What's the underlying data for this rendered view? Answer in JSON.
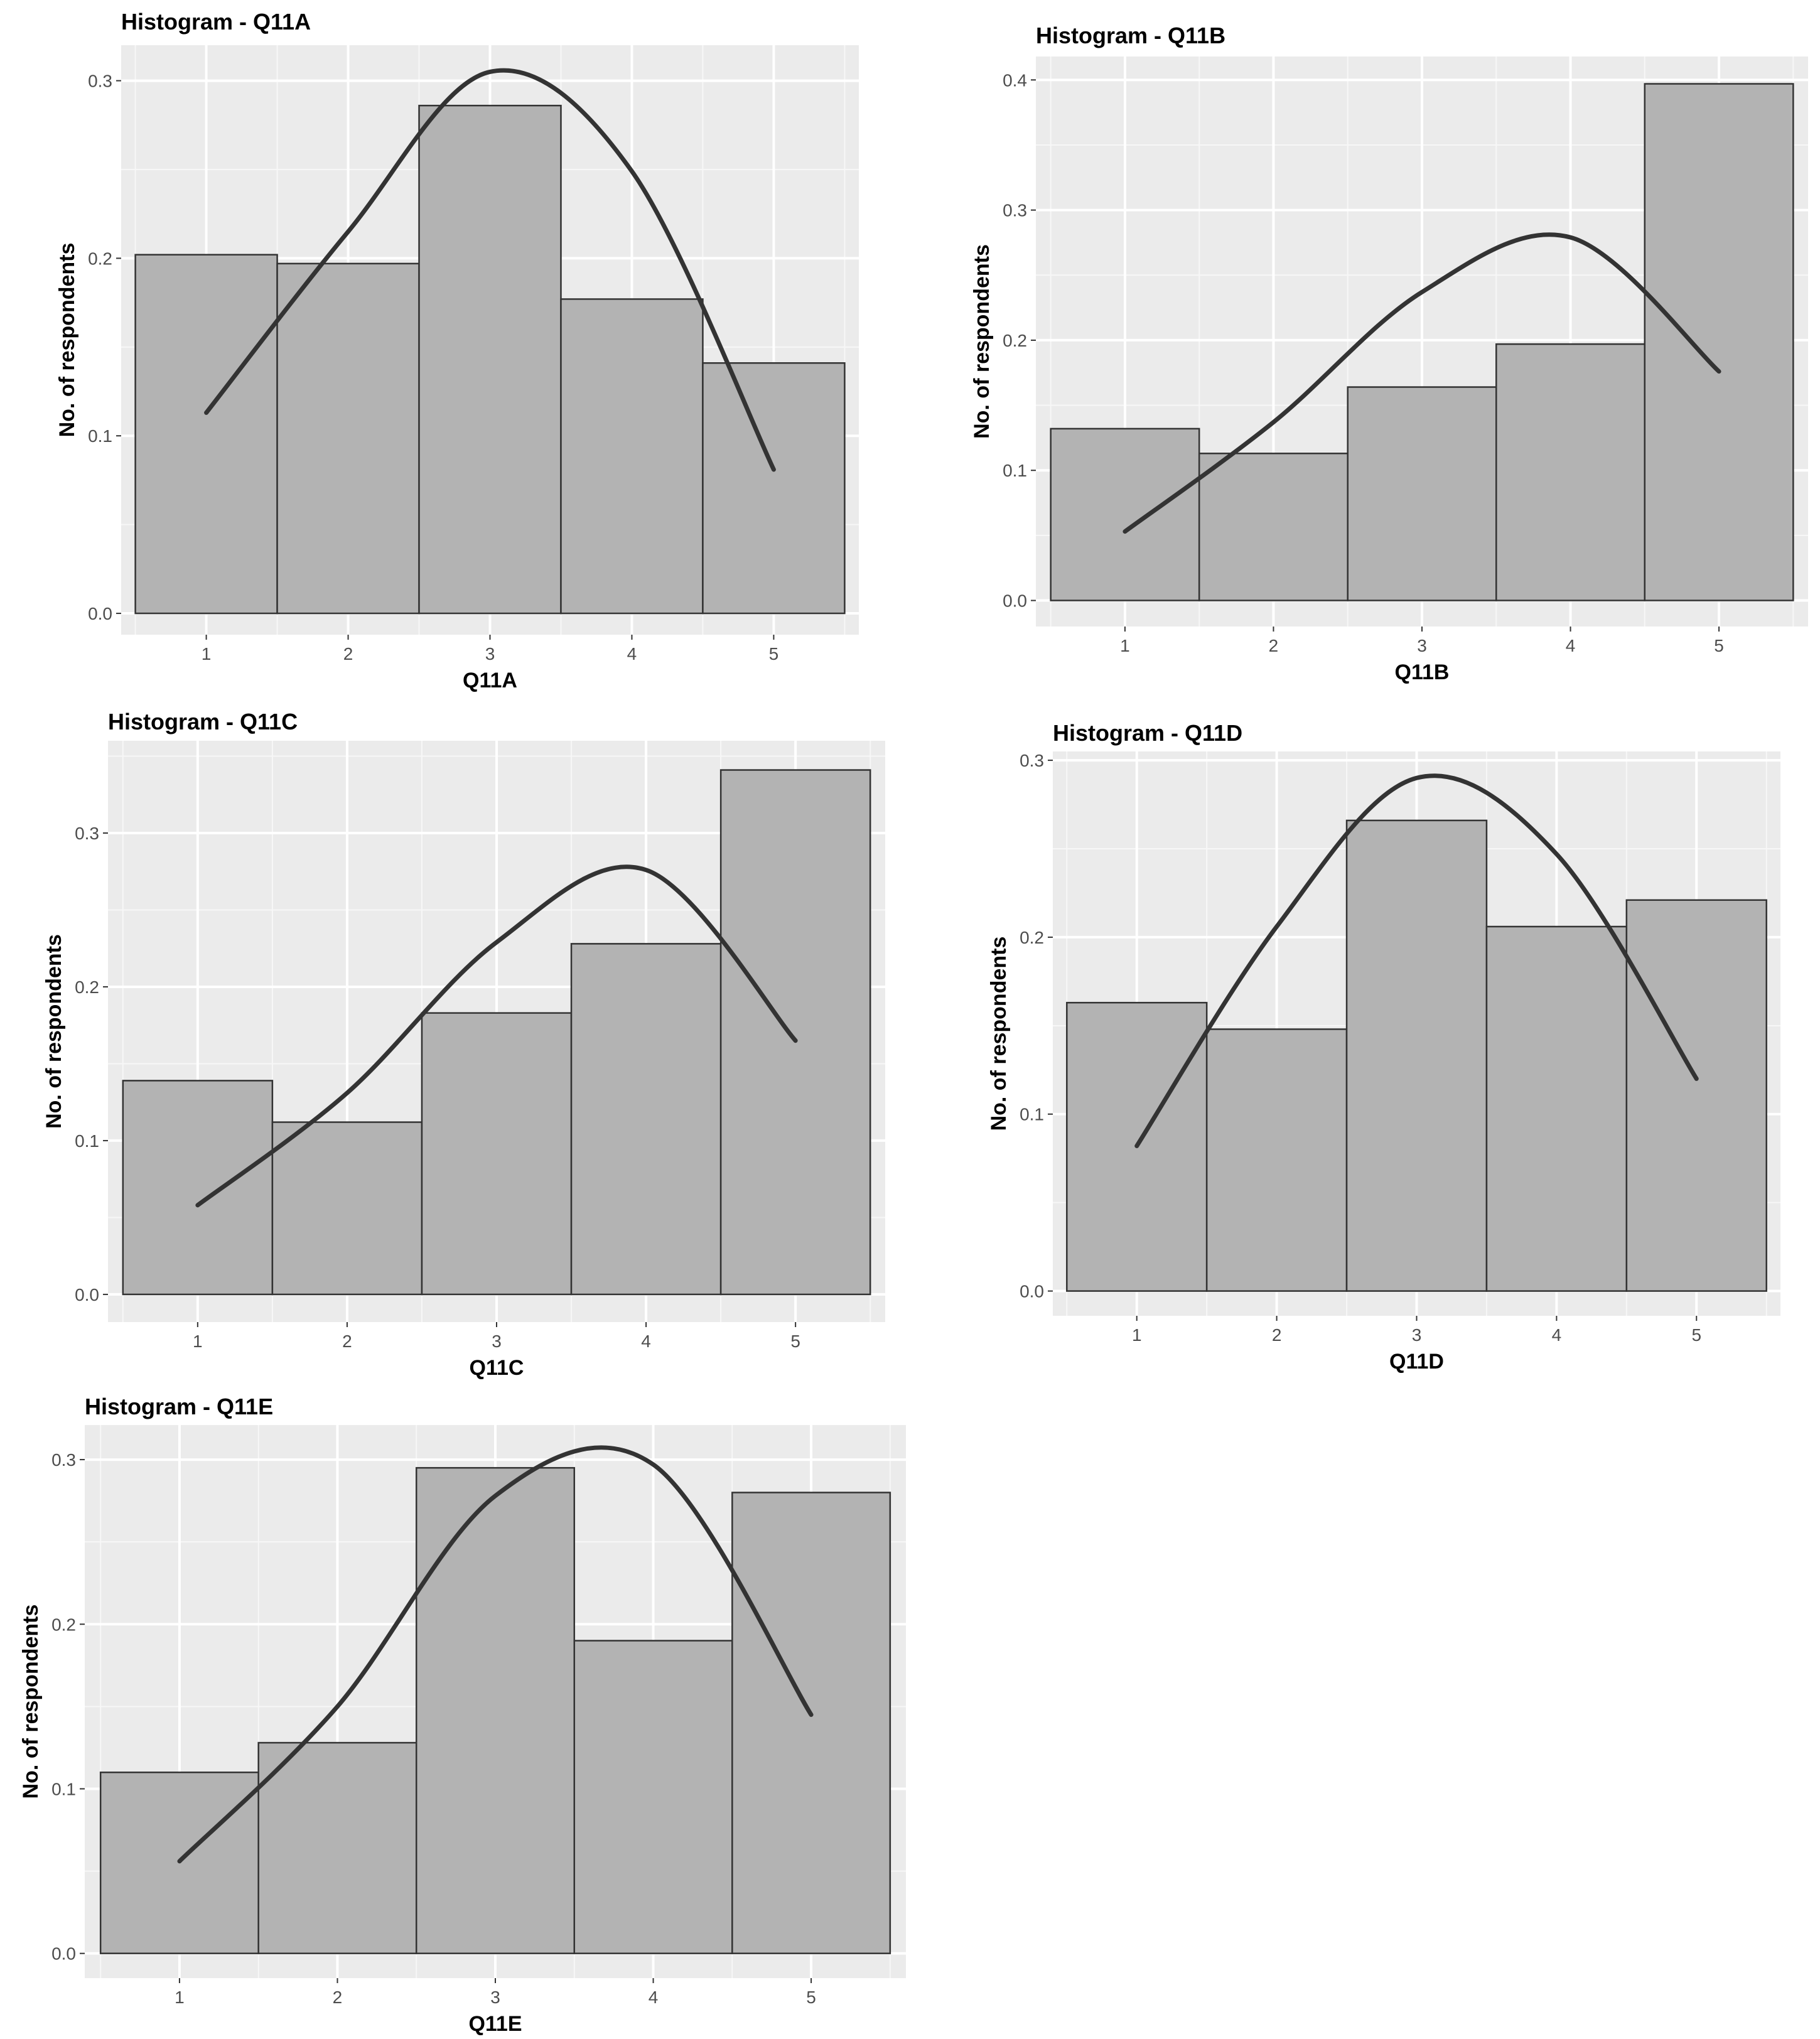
{
  "chart_data": [
    {
      "type": "bar",
      "title": "Histogram - Q11A",
      "xlabel": "Q11A",
      "ylabel": "No. of respondents",
      "categories": [
        "1",
        "2",
        "3",
        "4",
        "5"
      ],
      "values": [
        0.202,
        0.197,
        0.286,
        0.177,
        0.141
      ],
      "density_curve": [
        0.113,
        0.215,
        0.305,
        0.249,
        0.081
      ],
      "y_ticks": [
        "0.0",
        "0.1",
        "0.2",
        "0.3"
      ],
      "ylim": [
        -0.012,
        0.32
      ],
      "grid": true
    },
    {
      "type": "bar",
      "title": "Histogram - Q11B",
      "xlabel": "Q11B",
      "ylabel": "No. of respondents",
      "categories": [
        "1",
        "2",
        "3",
        "4",
        "5"
      ],
      "values": [
        0.132,
        0.113,
        0.164,
        0.197,
        0.397
      ],
      "density_curve": [
        0.053,
        0.137,
        0.237,
        0.279,
        0.176
      ],
      "y_ticks": [
        "0.0",
        "0.1",
        "0.2",
        "0.3",
        "0.4"
      ],
      "ylim": [
        -0.02,
        0.418
      ],
      "grid": true
    },
    {
      "type": "bar",
      "title": "Histogram - Q11C",
      "xlabel": "Q11C",
      "ylabel": "No. of respondents",
      "categories": [
        "1",
        "2",
        "3",
        "4",
        "5"
      ],
      "values": [
        0.139,
        0.112,
        0.183,
        0.228,
        0.341
      ],
      "density_curve": [
        0.058,
        0.131,
        0.229,
        0.276,
        0.165
      ],
      "y_ticks": [
        "0.0",
        "0.1",
        "0.2",
        "0.3"
      ],
      "ylim": [
        -0.018,
        0.36
      ],
      "grid": true
    },
    {
      "type": "bar",
      "title": "Histogram - Q11D",
      "xlabel": "Q11D",
      "ylabel": "No. of respondents",
      "categories": [
        "1",
        "2",
        "3",
        "4",
        "5"
      ],
      "values": [
        0.163,
        0.148,
        0.266,
        0.206,
        0.221
      ],
      "density_curve": [
        0.082,
        0.206,
        0.29,
        0.247,
        0.12
      ],
      "y_ticks": [
        "0.0",
        "0.1",
        "0.2",
        "0.3"
      ],
      "ylim": [
        -0.014,
        0.305
      ],
      "grid": true
    },
    {
      "type": "bar",
      "title": "Histogram - Q11E",
      "xlabel": "Q11E",
      "ylabel": "No. of respondents",
      "categories": [
        "1",
        "2",
        "3",
        "4",
        "5"
      ],
      "values": [
        0.11,
        0.128,
        0.295,
        0.19,
        0.28
      ],
      "density_curve": [
        0.056,
        0.15,
        0.278,
        0.297,
        0.145
      ],
      "y_ticks": [
        "0.0",
        "0.1",
        "0.2",
        "0.3"
      ],
      "ylim": [
        -0.015,
        0.321
      ],
      "grid": true
    }
  ]
}
